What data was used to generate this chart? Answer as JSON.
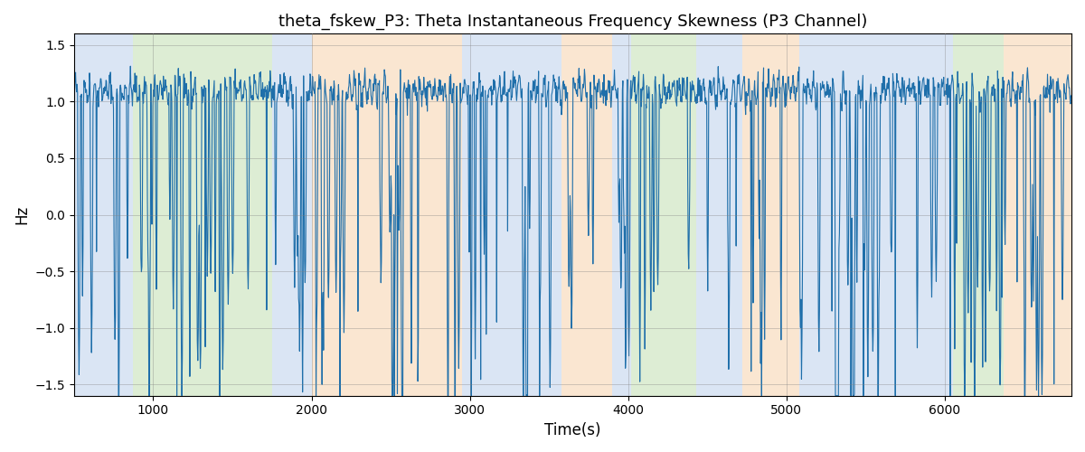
{
  "title": "theta_fskew_P3: Theta Instantaneous Frequency Skewness (P3 Channel)",
  "xlabel": "Time(s)",
  "ylabel": "Hz",
  "ylim": [
    -1.6,
    1.6
  ],
  "xlim": [
    500,
    6800
  ],
  "yticks": [
    -1.5,
    -1.0,
    -0.5,
    0.0,
    0.5,
    1.0,
    1.5
  ],
  "xticks": [
    1000,
    2000,
    3000,
    4000,
    5000,
    6000
  ],
  "line_color": "#1f6faa",
  "line_width": 0.8,
  "bg_regions": [
    {
      "start": 500,
      "end": 870,
      "color": "#aec6e8",
      "alpha": 0.45
    },
    {
      "start": 870,
      "end": 1750,
      "color": "#b5d9a0",
      "alpha": 0.45
    },
    {
      "start": 1750,
      "end": 2000,
      "color": "#aec6e8",
      "alpha": 0.45
    },
    {
      "start": 2000,
      "end": 2950,
      "color": "#f5c89a",
      "alpha": 0.45
    },
    {
      "start": 2950,
      "end": 3580,
      "color": "#aec6e8",
      "alpha": 0.45
    },
    {
      "start": 3580,
      "end": 3900,
      "color": "#f5c89a",
      "alpha": 0.45
    },
    {
      "start": 3900,
      "end": 4020,
      "color": "#aec6e8",
      "alpha": 0.45
    },
    {
      "start": 4020,
      "end": 4430,
      "color": "#b5d9a0",
      "alpha": 0.45
    },
    {
      "start": 4430,
      "end": 4720,
      "color": "#aec6e8",
      "alpha": 0.45
    },
    {
      "start": 4720,
      "end": 5080,
      "color": "#f5c89a",
      "alpha": 0.45
    },
    {
      "start": 5080,
      "end": 6050,
      "color": "#aec6e8",
      "alpha": 0.45
    },
    {
      "start": 6050,
      "end": 6370,
      "color": "#b5d9a0",
      "alpha": 0.45
    },
    {
      "start": 6370,
      "end": 6800,
      "color": "#f5c89a",
      "alpha": 0.45
    }
  ],
  "seed": 42,
  "n_points": 2000,
  "t_start": 500,
  "t_end": 6800
}
